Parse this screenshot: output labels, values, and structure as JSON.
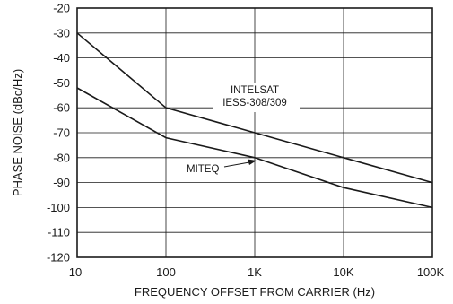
{
  "chart_data": {
    "type": "line",
    "x_scale": "log",
    "xlim": [
      10,
      100000
    ],
    "ylim": [
      -120,
      -20
    ],
    "grid": true,
    "xlabel": "FREQUENCY OFFSET FROM CARRIER (Hz)",
    "ylabel": "PHASE NOISE (dBc/Hz)",
    "x_ticks": [
      {
        "value": 10,
        "label": "10"
      },
      {
        "value": 100,
        "label": "100"
      },
      {
        "value": 1000,
        "label": "1K"
      },
      {
        "value": 10000,
        "label": "10K"
      },
      {
        "value": 100000,
        "label": "100K"
      }
    ],
    "y_ticks": [
      {
        "value": -20,
        "label": "-20"
      },
      {
        "value": -30,
        "label": "-30"
      },
      {
        "value": -40,
        "label": "-40"
      },
      {
        "value": -50,
        "label": "-50"
      },
      {
        "value": -60,
        "label": "-60"
      },
      {
        "value": -70,
        "label": "-70"
      },
      {
        "value": -80,
        "label": "-80"
      },
      {
        "value": -90,
        "label": "-90"
      },
      {
        "value": -100,
        "label": "-100"
      },
      {
        "value": -110,
        "label": "-110"
      },
      {
        "value": -120,
        "label": "-120"
      }
    ],
    "series": [
      {
        "name": "INTELSAT IESS-308/309",
        "x": [
          10,
          100,
          1000,
          10000,
          100000
        ],
        "y": [
          -30,
          -60,
          -70,
          -80,
          -90
        ]
      },
      {
        "name": "MITEQ",
        "x": [
          10,
          100,
          1000,
          10000,
          100000
        ],
        "y": [
          -52,
          -72,
          -80,
          -92,
          -100
        ]
      }
    ],
    "annotations": [
      {
        "text_lines": [
          "INTELSAT",
          "IESS-308/309"
        ],
        "series": "INTELSAT IESS-308/309"
      },
      {
        "text": "MITEQ",
        "series": "MITEQ",
        "arrow_target": {
          "x": 1000,
          "y": -80
        }
      }
    ]
  }
}
